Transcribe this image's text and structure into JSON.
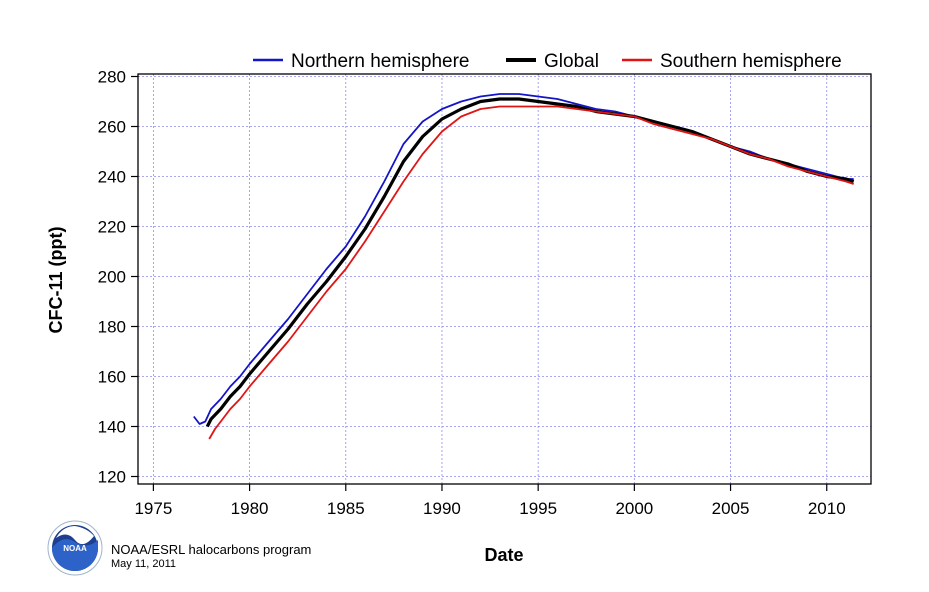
{
  "chart_data": {
    "type": "line",
    "title": "",
    "xlabel": "Date",
    "ylabel": "CFC-11 (ppt)",
    "xlim": [
      1974.2,
      2012.3
    ],
    "ylim": [
      117,
      281
    ],
    "xticks": [
      1975,
      1980,
      1985,
      1990,
      1995,
      2000,
      2005,
      2010
    ],
    "yticks": [
      120,
      140,
      160,
      180,
      200,
      220,
      240,
      260,
      280
    ],
    "grid": true,
    "legend_position": "top",
    "series": [
      {
        "name": "Northern hemisphere",
        "color": "#1414c8",
        "x": [
          1977.1,
          1977.4,
          1977.7,
          1978.0,
          1978.5,
          1979.0,
          1979.5,
          1980.0,
          1981.0,
          1982.0,
          1983.0,
          1984.0,
          1985.0,
          1986.0,
          1987.0,
          1988.0,
          1989.0,
          1990.0,
          1991.0,
          1992.0,
          1993.0,
          1994.0,
          1995.0,
          1996.0,
          1997.0,
          1998.0,
          1999.0,
          2000.0,
          2001.0,
          2002.0,
          2003.0,
          2004.0,
          2005.0,
          2006.0,
          2007.0,
          2008.0,
          2009.0,
          2010.0,
          2011.0,
          2011.4
        ],
        "y": [
          144,
          141,
          142,
          147,
          151,
          156,
          160,
          165,
          174,
          183,
          193,
          203,
          212,
          224,
          238,
          253,
          262,
          267,
          270,
          272,
          273,
          273,
          272,
          271,
          269,
          267,
          266,
          264,
          262,
          260,
          258,
          255,
          252,
          250,
          247,
          245,
          243,
          241,
          239,
          239
        ]
      },
      {
        "name": "Global",
        "color": "#000000",
        "x": [
          1977.8,
          1978.0,
          1978.5,
          1979.0,
          1979.5,
          1980.0,
          1981.0,
          1982.0,
          1983.0,
          1984.0,
          1985.0,
          1986.0,
          1987.0,
          1988.0,
          1989.0,
          1990.0,
          1991.0,
          1992.0,
          1993.0,
          1994.0,
          1995.0,
          1996.0,
          1997.0,
          1998.0,
          1999.0,
          2000.0,
          2001.0,
          2002.0,
          2003.0,
          2004.0,
          2005.0,
          2006.0,
          2007.0,
          2008.0,
          2009.0,
          2010.0,
          2011.0,
          2011.4
        ],
        "y": [
          140,
          143,
          147,
          152,
          156,
          161,
          170,
          179,
          189,
          198,
          208,
          219,
          232,
          246,
          256,
          263,
          267,
          270,
          271,
          271,
          270,
          269,
          268,
          266,
          265,
          264,
          262,
          260,
          258,
          255,
          252,
          249,
          247,
          245,
          242,
          240,
          239,
          238
        ]
      },
      {
        "name": "Southern hemisphere",
        "color": "#e01414",
        "x": [
          1977.9,
          1978.2,
          1978.6,
          1979.0,
          1979.5,
          1980.0,
          1981.0,
          1982.0,
          1983.0,
          1984.0,
          1985.0,
          1986.0,
          1987.0,
          1988.0,
          1989.0,
          1990.0,
          1991.0,
          1992.0,
          1993.0,
          1994.0,
          1995.0,
          1996.0,
          1997.0,
          1998.0,
          1999.0,
          2000.0,
          2001.0,
          2002.0,
          2003.0,
          2004.0,
          2005.0,
          2006.0,
          2007.0,
          2008.0,
          2009.0,
          2010.0,
          2011.0,
          2011.4
        ],
        "y": [
          135,
          139,
          143,
          147,
          151,
          156,
          165,
          174,
          184,
          194,
          203,
          214,
          226,
          238,
          249,
          258,
          264,
          267,
          268,
          268,
          268,
          268,
          267,
          266,
          265,
          264,
          261,
          259,
          257,
          255,
          252,
          249,
          247,
          244,
          242,
          240,
          238,
          237
        ]
      }
    ]
  },
  "credit": {
    "line1": "NOAA/ESRL halocarbons program",
    "line2": "May 11, 2011",
    "logo_text": "NOAA"
  }
}
